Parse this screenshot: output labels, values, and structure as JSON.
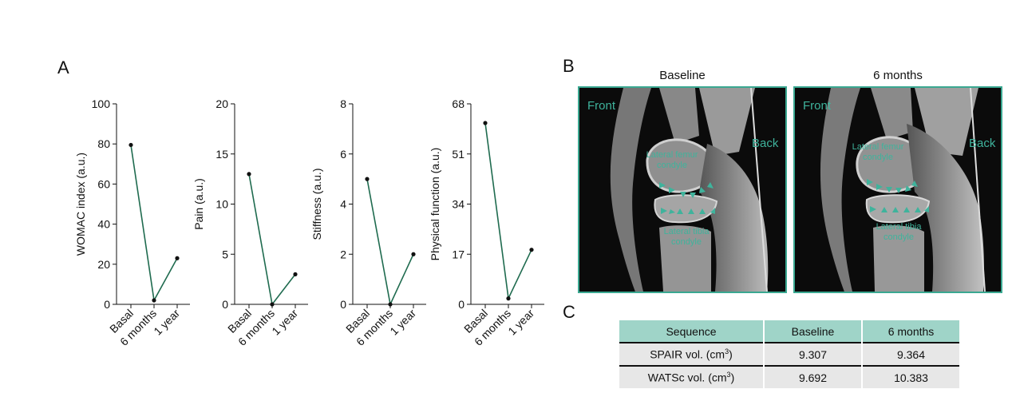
{
  "panels": {
    "a": "A",
    "b": "B",
    "c": "C"
  },
  "chart_data": [
    {
      "type": "line",
      "categories": [
        "Basal",
        "6 months",
        "1 year"
      ],
      "values": [
        79.5,
        2,
        23
      ],
      "ylabel": "WOMAC index (a.u.)",
      "ylim": [
        0,
        100
      ],
      "yticks": [
        "0",
        "20",
        "40",
        "60",
        "80",
        "100"
      ]
    },
    {
      "type": "line",
      "categories": [
        "Basal",
        "6 months",
        "1 year"
      ],
      "values": [
        13,
        0,
        3
      ],
      "ylabel": "Pain (a.u.)",
      "ylim": [
        0,
        20
      ],
      "yticks": [
        "0",
        "5",
        "10",
        "15",
        "20"
      ]
    },
    {
      "type": "line",
      "categories": [
        "Basal",
        "6 months",
        "1 year"
      ],
      "values": [
        5,
        0,
        2
      ],
      "ylabel": "Stiffness (a.u.)",
      "ylim": [
        0,
        8
      ],
      "yticks": [
        "0",
        "2",
        "4",
        "6",
        "8"
      ]
    },
    {
      "type": "line",
      "categories": [
        "Basal",
        "6 months",
        "1 year"
      ],
      "values": [
        61.5,
        2,
        18.5
      ],
      "ylabel": "Physical function (a.u.)",
      "ylim": [
        0,
        68
      ],
      "yticks": [
        "0",
        "17",
        "34",
        "51",
        "68"
      ]
    }
  ],
  "mri": [
    {
      "title": "Baseline",
      "front": "Front",
      "back": "Back",
      "femur": "Lateral femur condyle",
      "tibia": "Lateral tibia condyle"
    },
    {
      "title": "6 months",
      "front": "Front",
      "back": "Back",
      "femur": "Lateral femur condyle",
      "tibia": "Lateral tibia condyle"
    }
  ],
  "table": {
    "headers": [
      "Sequence",
      "Baseline",
      "6 months"
    ],
    "rows": [
      {
        "label": "SPAIR vol. (cm",
        "sup": "3",
        "end": ")",
        "baseline": "9.307",
        "six": "9.364"
      },
      {
        "label": "WATSc vol. (cm",
        "sup": "3",
        "end": ")",
        "baseline": "9.692",
        "six": "10.383"
      }
    ]
  },
  "colors": {
    "line": "#1f6b4f",
    "accent": "#3aa891",
    "tableHeader": "#9fd4c8"
  }
}
